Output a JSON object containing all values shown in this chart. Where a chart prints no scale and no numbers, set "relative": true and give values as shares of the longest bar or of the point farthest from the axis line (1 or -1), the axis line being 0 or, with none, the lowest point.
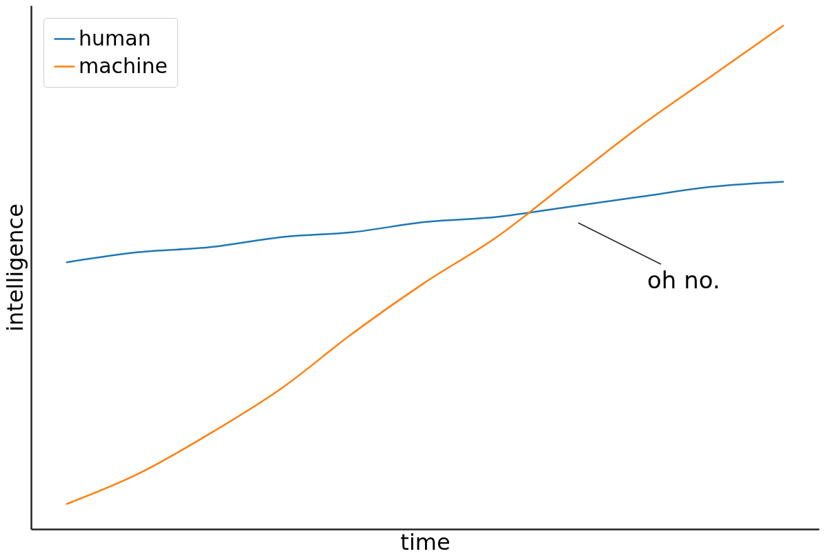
{
  "chart_data": {
    "type": "line",
    "xlabel": "time",
    "ylabel": "intelligence",
    "relative": true,
    "legend": "top left",
    "categories": [
      null,
      null,
      null,
      null,
      null,
      null,
      null,
      null,
      null,
      null,
      null
    ],
    "series": [
      {
        "name": "human",
        "color": "#1f77b4",
        "values": [
          0.53,
          0.55,
          0.56,
          0.58,
          0.59,
          0.61,
          0.62,
          0.64,
          0.66,
          0.68,
          0.69
        ]
      },
      {
        "name": "machine",
        "color": "#ff7f0e",
        "values": [
          0.05,
          0.11,
          0.19,
          0.28,
          0.39,
          0.49,
          0.58,
          0.69,
          0.8,
          0.9,
          1
        ]
      }
    ],
    "annotations": [
      "oh no."
    ]
  }
}
